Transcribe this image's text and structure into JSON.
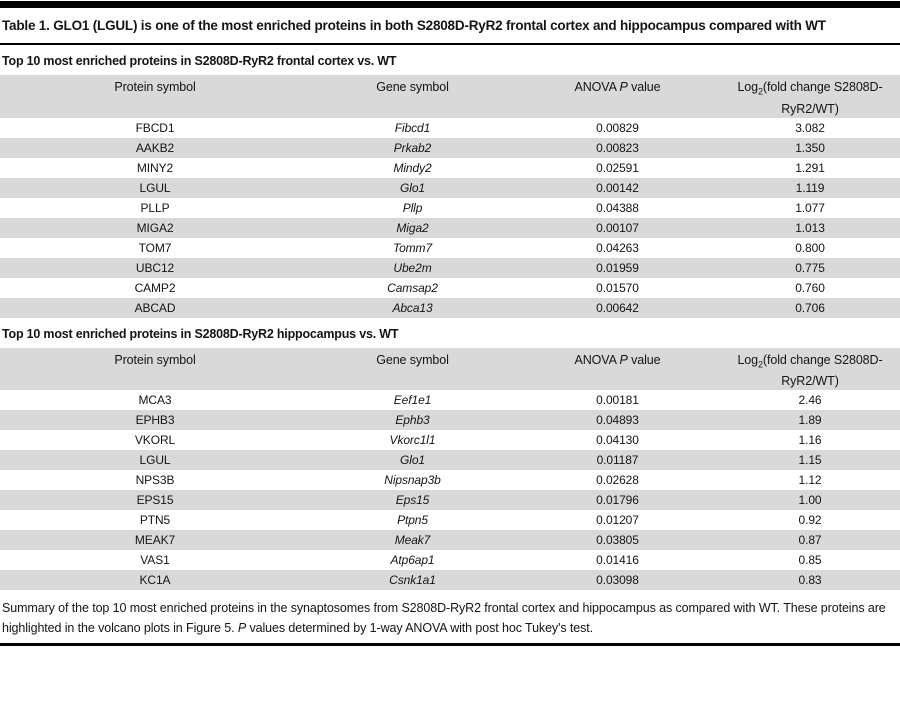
{
  "title": "Table 1. GLO1 (LGUL) is one of the most enriched proteins in both S2808D-RyR2 frontal cortex and hippocampus compared with WT",
  "columns": {
    "protein": "Protein symbol",
    "gene": "Gene symbol",
    "anova": {
      "pre": "ANOVA ",
      "p": "P",
      "post": " value"
    },
    "log": {
      "word": "Log",
      "sub": "2",
      "line1": "(fold change S2808D-",
      "line2": "RyR2/WT)"
    }
  },
  "sections": [
    {
      "label": "Top 10 most enriched proteins in S2808D-RyR2 frontal cortex vs. WT",
      "rows": [
        {
          "protein": "FBCD1",
          "gene": "Fibcd1",
          "p": "0.00829",
          "log2fc": "3.082"
        },
        {
          "protein": "AAKB2",
          "gene": "Prkab2",
          "p": "0.00823",
          "log2fc": "1.350"
        },
        {
          "protein": "MINY2",
          "gene": "Mindy2",
          "p": "0.02591",
          "log2fc": "1.291"
        },
        {
          "protein": "LGUL",
          "gene": "Glo1",
          "p": "0.00142",
          "log2fc": "1.119"
        },
        {
          "protein": "PLLP",
          "gene": "Pllp",
          "p": "0.04388",
          "log2fc": "1.077"
        },
        {
          "protein": "MIGA2",
          "gene": "Miga2",
          "p": "0.00107",
          "log2fc": "1.013"
        },
        {
          "protein": "TOM7",
          "gene": "Tomm7",
          "p": "0.04263",
          "log2fc": "0.800"
        },
        {
          "protein": "UBC12",
          "gene": "Ube2m",
          "p": "0.01959",
          "log2fc": "0.775"
        },
        {
          "protein": "CAMP2",
          "gene": "Camsap2",
          "p": "0.01570",
          "log2fc": "0.760"
        },
        {
          "protein": "ABCAD",
          "gene": "Abca13",
          "p": "0.00642",
          "log2fc": "0.706"
        }
      ]
    },
    {
      "label": "Top 10 most enriched proteins in S2808D-RyR2 hippocampus vs. WT",
      "rows": [
        {
          "protein": "MCA3",
          "gene": "Eef1e1",
          "p": "0.00181",
          "log2fc": "2.46"
        },
        {
          "protein": "EPHB3",
          "gene": "Ephb3",
          "p": "0.04893",
          "log2fc": "1.89"
        },
        {
          "protein": "VKORL",
          "gene": "Vkorc1l1",
          "p": "0.04130",
          "log2fc": "1.16"
        },
        {
          "protein": "LGUL",
          "gene": "Glo1",
          "p": "0.01187",
          "log2fc": "1.15"
        },
        {
          "protein": "NPS3B",
          "gene": "Nipsnap3b",
          "p": "0.02628",
          "log2fc": "1.12"
        },
        {
          "protein": "EPS15",
          "gene": "Eps15",
          "p": "0.01796",
          "log2fc": "1.00"
        },
        {
          "protein": "PTN5",
          "gene": "Ptpn5",
          "p": "0.01207",
          "log2fc": "0.92"
        },
        {
          "protein": "MEAK7",
          "gene": "Meak7",
          "p": "0.03805",
          "log2fc": "0.87"
        },
        {
          "protein": "VAS1",
          "gene": "Atp6ap1",
          "p": "0.01416",
          "log2fc": "0.85"
        },
        {
          "protein": "KC1A",
          "gene": "Csnk1a1",
          "p": "0.03098",
          "log2fc": "0.83"
        }
      ]
    }
  ],
  "footer": {
    "part1": "Summary of the top 10 most enriched proteins in the synaptosomes from S2808D-RyR2 frontal cortex and hippocampus as compared with WT. These proteins are highlighted in the volcano plots in Figure 5. ",
    "p": "P",
    "part2": " values determined by 1-way ANOVA with post hoc Tukey's test."
  },
  "colors": {
    "row_stripe": "#d9d9d9",
    "rule": "#000000",
    "text": "#151515"
  }
}
